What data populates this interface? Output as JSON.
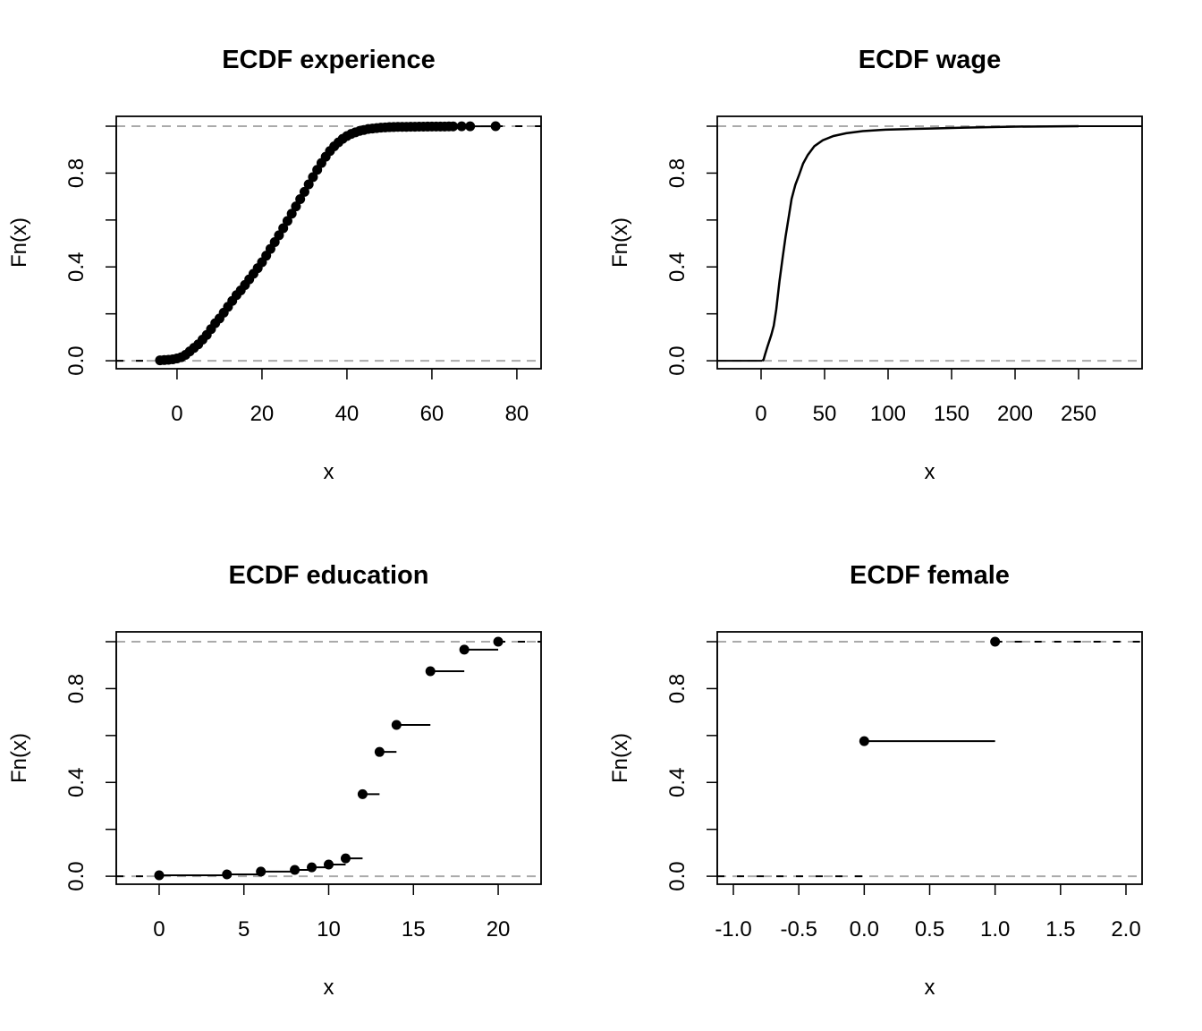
{
  "chart_data": [
    {
      "type": "line",
      "title": "ECDF experience",
      "xlabel": "x",
      "ylabel": "Fn(x)",
      "xlim": [
        -14.3,
        85.7
      ],
      "ylim": [
        -0.034,
        1.042
      ],
      "xticks": [
        0,
        20,
        40,
        60,
        80
      ],
      "xtick_labels": [
        "0",
        "20",
        "40",
        "60",
        "80"
      ],
      "yticks": [
        0,
        0.2,
        0.4,
        0.6,
        0.8,
        1.0
      ],
      "ytick_labels": [
        "0.0",
        "",
        "0.4",
        "",
        "0.8",
        ""
      ],
      "reference_lines": [
        0,
        1
      ],
      "style": "step-points",
      "x": [
        -4,
        -3,
        -2,
        -1,
        0,
        1,
        2,
        3,
        4,
        5,
        6,
        7,
        8,
        9,
        10,
        11,
        12,
        13,
        14,
        15,
        16,
        17,
        18,
        19,
        20,
        21,
        22,
        23,
        24,
        25,
        26,
        27,
        28,
        29,
        30,
        31,
        32,
        33,
        34,
        35,
        36,
        37,
        38,
        39,
        40,
        41,
        42,
        43,
        44,
        45,
        46,
        47,
        48,
        49,
        50,
        51,
        52,
        53,
        54,
        55,
        56,
        57,
        58,
        59,
        60,
        61,
        62,
        63,
        64,
        65,
        67,
        69,
        75
      ],
      "y": [
        0.002,
        0.003,
        0.004,
        0.006,
        0.01,
        0.015,
        0.025,
        0.04,
        0.055,
        0.07,
        0.09,
        0.11,
        0.135,
        0.16,
        0.18,
        0.205,
        0.23,
        0.255,
        0.28,
        0.3,
        0.323,
        0.347,
        0.371,
        0.395,
        0.42,
        0.448,
        0.477,
        0.506,
        0.535,
        0.565,
        0.596,
        0.627,
        0.658,
        0.689,
        0.72,
        0.752,
        0.783,
        0.814,
        0.843,
        0.87,
        0.894,
        0.914,
        0.931,
        0.946,
        0.958,
        0.967,
        0.974,
        0.98,
        0.984,
        0.988,
        0.99,
        0.992,
        0.994,
        0.995,
        0.996,
        0.9965,
        0.997,
        0.9972,
        0.9974,
        0.9976,
        0.9978,
        0.998,
        0.9982,
        0.9984,
        0.9985,
        0.9986,
        0.9987,
        0.9988,
        0.999,
        0.9991,
        0.9994,
        0.9997,
        1.0
      ]
    },
    {
      "type": "line",
      "title": "ECDF wage",
      "xlabel": "x",
      "ylabel": "Fn(x)",
      "xlim": [
        -34.5,
        300
      ],
      "ylim": [
        -0.034,
        1.042
      ],
      "xticks": [
        0,
        50,
        100,
        150,
        200,
        250
      ],
      "xtick_labels": [
        "0",
        "50",
        "100",
        "150",
        "200",
        "250"
      ],
      "yticks": [
        0,
        0.2,
        0.4,
        0.6,
        0.8,
        1.0
      ],
      "ytick_labels": [
        "0.0",
        "",
        "0.4",
        "",
        "0.8",
        ""
      ],
      "reference_lines": [
        0,
        1
      ],
      "style": "line",
      "x": [
        1,
        2,
        3,
        5,
        8,
        10,
        12,
        14.5,
        17,
        19.3,
        22,
        24,
        27,
        29.8,
        33,
        36.8,
        42,
        48.6,
        57,
        67,
        80,
        98,
        115,
        133,
        160,
        200,
        250
      ],
      "y": [
        0.0,
        0.005,
        0.025,
        0.06,
        0.11,
        0.15,
        0.22,
        0.34,
        0.44,
        0.53,
        0.62,
        0.69,
        0.75,
        0.79,
        0.84,
        0.877,
        0.915,
        0.94,
        0.958,
        0.97,
        0.979,
        0.985,
        0.988,
        0.99,
        0.994,
        0.998,
        1.0
      ]
    },
    {
      "type": "line",
      "title": "ECDF education",
      "xlabel": "x",
      "ylabel": "Fn(x)",
      "xlim": [
        -2.53,
        22.53
      ],
      "ylim": [
        -0.034,
        1.042
      ],
      "xticks": [
        0,
        5,
        10,
        15,
        20
      ],
      "xtick_labels": [
        "0",
        "5",
        "10",
        "15",
        "20"
      ],
      "yticks": [
        0,
        0.2,
        0.4,
        0.6,
        0.8,
        1.0
      ],
      "ytick_labels": [
        "0.0",
        "",
        "0.4",
        "",
        "0.8",
        ""
      ],
      "reference_lines": [
        0,
        1
      ],
      "style": "step-points",
      "x": [
        0,
        4,
        6,
        8,
        9,
        10,
        11,
        12,
        13,
        14,
        16,
        18,
        20
      ],
      "y": [
        0.004,
        0.008,
        0.02,
        0.027,
        0.038,
        0.05,
        0.076,
        0.35,
        0.53,
        0.645,
        0.874,
        0.966,
        1.0
      ]
    },
    {
      "type": "line",
      "title": "ECDF female",
      "xlabel": "x",
      "ylabel": "Fn(x)",
      "xlim": [
        -1.123,
        2.123
      ],
      "ylim": [
        -0.034,
        1.042
      ],
      "xticks": [
        -1.0,
        -0.5,
        0.0,
        0.5,
        1.0,
        1.5,
        2.0
      ],
      "xtick_labels": [
        "-1.0",
        "-0.5",
        "0.0",
        "0.5",
        "1.0",
        "1.5",
        "2.0"
      ],
      "yticks": [
        0,
        0.2,
        0.4,
        0.6,
        0.8,
        1.0
      ],
      "ytick_labels": [
        "0.0",
        "",
        "0.4",
        "",
        "0.8",
        ""
      ],
      "reference_lines": [
        0,
        1
      ],
      "style": "step-points",
      "x": [
        0,
        1
      ],
      "y": [
        0.576,
        1.0
      ]
    }
  ]
}
